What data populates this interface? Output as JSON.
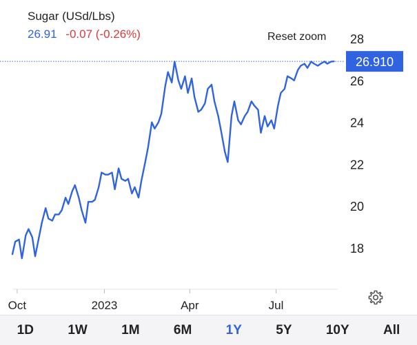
{
  "header": {
    "title": "Sugar (USd/Lbs)",
    "last": "26.91",
    "change": "-0.07 (-0.26%)"
  },
  "reset_zoom_label": "Reset zoom",
  "current_price_label": "26.910",
  "icons": {
    "settings": "gear-icon"
  },
  "colors": {
    "line": "#2f63e0",
    "change": "#d93a3a",
    "accent": "#2f63e0"
  },
  "range_buttons": [
    {
      "label": "1D"
    },
    {
      "label": "1W"
    },
    {
      "label": "1M"
    },
    {
      "label": "6M"
    },
    {
      "label": "1Y",
      "active": true
    },
    {
      "label": "5Y"
    },
    {
      "label": "10Y"
    },
    {
      "label": "All"
    }
  ],
  "chart_data": {
    "type": "line",
    "title": "",
    "xlabel": "",
    "ylabel": "",
    "ylim": [
      16,
      29
    ],
    "xlim": [
      "2022-09-26",
      "2023-09-04"
    ],
    "y_ticks": [
      18,
      20,
      22,
      24,
      26,
      28
    ],
    "x_ticks": [
      {
        "label": "Oct",
        "x": "2022-10-01"
      },
      {
        "label": "2023",
        "x": "2023-01-01"
      },
      {
        "label": "Apr",
        "x": "2023-04-01"
      },
      {
        "label": "Jul",
        "x": "2023-07-01"
      }
    ],
    "current_value": 26.91,
    "grid": false,
    "legend": "none",
    "series": [
      {
        "x": [
          "2022-09-26",
          "2022-09-29",
          "2022-10-03",
          "2022-10-06",
          "2022-10-10",
          "2022-10-13",
          "2022-10-17",
          "2022-10-20",
          "2022-10-24",
          "2022-10-27",
          "2022-10-31",
          "2022-11-03",
          "2022-11-07",
          "2022-11-10",
          "2022-11-14",
          "2022-11-17",
          "2022-11-21",
          "2022-11-24",
          "2022-11-28",
          "2022-12-01",
          "2022-12-05",
          "2022-12-08",
          "2022-12-12",
          "2022-12-15",
          "2022-12-19",
          "2022-12-22",
          "2022-12-26",
          "2022-12-29",
          "2023-01-02",
          "2023-01-05",
          "2023-01-09",
          "2023-01-12",
          "2023-01-16",
          "2023-01-19",
          "2023-01-23",
          "2023-01-26",
          "2023-01-30",
          "2023-02-02",
          "2023-02-06",
          "2023-02-09",
          "2023-02-13",
          "2023-02-16",
          "2023-02-20",
          "2023-02-23",
          "2023-02-27",
          "2023-03-02",
          "2023-03-06",
          "2023-03-09",
          "2023-03-13",
          "2023-03-16",
          "2023-03-20",
          "2023-03-23",
          "2023-03-27",
          "2023-03-30",
          "2023-04-03",
          "2023-04-06",
          "2023-04-10",
          "2023-04-13",
          "2023-04-17",
          "2023-04-20",
          "2023-04-24",
          "2023-04-27",
          "2023-05-01",
          "2023-05-04",
          "2023-05-08",
          "2023-05-11",
          "2023-05-15",
          "2023-05-18",
          "2023-05-22",
          "2023-05-25",
          "2023-05-29",
          "2023-06-01",
          "2023-06-05",
          "2023-06-08",
          "2023-06-12",
          "2023-06-15",
          "2023-06-19",
          "2023-06-22",
          "2023-06-26",
          "2023-06-29",
          "2023-07-03",
          "2023-07-06",
          "2023-07-10",
          "2023-07-13",
          "2023-07-17",
          "2023-07-20",
          "2023-07-24",
          "2023-07-27",
          "2023-07-31",
          "2023-08-03",
          "2023-08-07",
          "2023-08-10",
          "2023-08-14",
          "2023-08-17",
          "2023-08-21",
          "2023-08-24",
          "2023-08-28",
          "2023-08-31"
        ],
        "y": [
          17.7,
          18.3,
          18.4,
          17.5,
          18.6,
          18.9,
          18.5,
          17.6,
          18.5,
          19.2,
          19.9,
          19.4,
          19.3,
          19.6,
          19.6,
          19.8,
          20.4,
          20.1,
          20.7,
          21.0,
          20.4,
          19.8,
          19.2,
          20.2,
          20.2,
          20.3,
          20.9,
          21.6,
          21.5,
          21.5,
          21.6,
          20.8,
          21.8,
          21.3,
          21.2,
          21.3,
          20.6,
          20.9,
          20.4,
          21.2,
          22.1,
          22.8,
          24.0,
          23.7,
          24.0,
          24.4,
          25.7,
          26.4,
          25.9,
          26.9,
          26.0,
          25.6,
          26.2,
          25.4,
          26.1,
          25.2,
          24.5,
          24.6,
          24.9,
          25.6,
          25.8,
          25.0,
          24.3,
          23.6,
          22.6,
          22.1,
          24.3,
          25.0,
          24.1,
          23.9,
          24.3,
          24.5,
          25.0,
          24.8,
          24.6,
          23.5,
          24.3,
          23.8,
          24.1,
          23.7,
          24.8,
          25.4,
          25.6,
          26.2,
          26.1,
          26.0,
          26.5,
          26.7,
          26.8,
          26.6,
          26.9,
          26.8,
          26.7,
          26.8,
          26.9,
          26.8,
          26.9,
          26.91
        ]
      }
    ]
  }
}
